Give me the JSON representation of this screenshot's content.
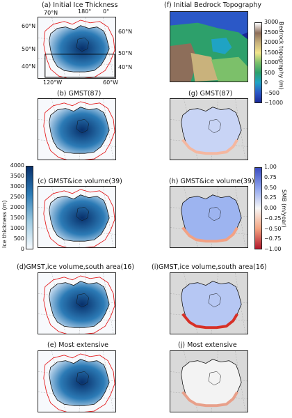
{
  "colors": {
    "ice_dark": "#08306b",
    "ice_mid": "#2c7bb6",
    "ice_light": "#c6dbef",
    "smb_pos": "#4a6fe3",
    "smb_neg": "#d73027",
    "smb_zero": "#f7f7f7",
    "ocean_gray": "#d9d9d9",
    "contour_red": "#e41a1c"
  },
  "panels": {
    "a": {
      "title": "(a) Initial Ice Thickness",
      "geo": {
        "top_left": "70°N",
        "top_mid": "180°",
        "top_right": "0°",
        "left_60": "60°N",
        "left_50": "50°N",
        "left_40": "40°N",
        "right_60": "60°N",
        "right_50": "50°N",
        "right_40": "40°N",
        "bottom_left": "120°W",
        "bottom_right": "60°W"
      }
    },
    "b": {
      "title": "(b) GMST(87)"
    },
    "c": {
      "title": "(c) GMST&ice volume(39)"
    },
    "d": {
      "title": "(d)GMST,ice volume,south area(16)"
    },
    "e": {
      "title": "(e) Most extensive"
    },
    "f": {
      "title": "(f) Initial Bedrock Topography"
    },
    "g": {
      "title": "(g) GMST(87)"
    },
    "h": {
      "title": "(h) GMST&ice volume(39)"
    },
    "i": {
      "title": "(i)GMST,ice volume,south area(16)"
    },
    "j": {
      "title": "(j) Most extensive"
    }
  },
  "colorbars": {
    "ice": {
      "label": "Ice thickness (m)",
      "ticks": [
        "4000",
        "3500",
        "3000",
        "2500",
        "2000",
        "1500",
        "1000",
        "500",
        "0"
      ]
    },
    "bedrock": {
      "label": "Bedrock topography (m)",
      "ticks": [
        "3000",
        "2500",
        "2000",
        "1500",
        "1000",
        "500",
        "0",
        "−500",
        "−1000"
      ]
    },
    "smb": {
      "label": "SMB (m/year)",
      "ticks": [
        "1.00",
        "0.75",
        "0.50",
        "0.25",
        "0.00",
        "−0.25",
        "−0.50",
        "−0.75",
        "−1.00"
      ]
    }
  }
}
